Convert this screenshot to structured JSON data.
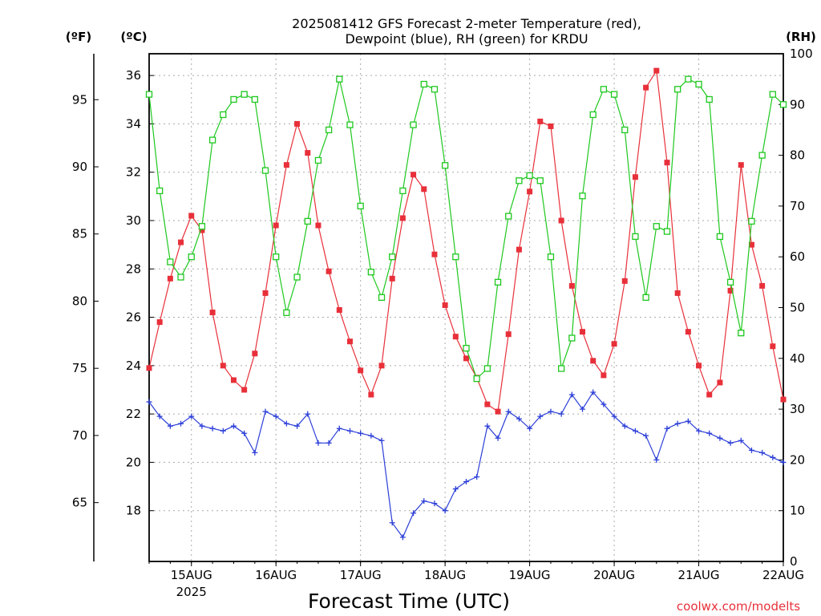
{
  "chart_data": {
    "type": "line",
    "title": "2025081412 GFS Forecast 2-meter Temperature (red),",
    "subtitle": "Dewpoint (blue), RH (green) for KRDU",
    "xlabel": "Forecast Time (UTC)",
    "credit": "coolwx.com/modelts",
    "axis_units": {
      "fahrenheit": "(ºF)",
      "celsius": "(ºC)",
      "rh": "(RH)"
    },
    "x_start": "2025-08-14T12:00Z",
    "x_end": "2025-08-22T00:00Z",
    "x_tick_labels": [
      "15AUG",
      "16AUG",
      "17AUG",
      "18AUG",
      "19AUG",
      "20AUG",
      "21AUG",
      "22AUG"
    ],
    "x_year_label": "2025",
    "y_celsius": {
      "range": [
        15.9,
        36.9
      ],
      "ticks": [
        18,
        20,
        22,
        24,
        26,
        28,
        30,
        32,
        34,
        36
      ]
    },
    "y_fahrenheit": {
      "range": [
        60.6,
        98.4
      ],
      "ticks": [
        65,
        70,
        75,
        80,
        85,
        90,
        95
      ]
    },
    "y_rh": {
      "range": [
        0,
        100
      ],
      "ticks": [
        0,
        10,
        20,
        30,
        40,
        50,
        60,
        70,
        80,
        90,
        100
      ]
    },
    "grid": true,
    "colors": {
      "temperature": "#e8303a",
      "dewpoint": "#2c3fd8",
      "rh": "#1ec81e"
    },
    "series": [
      {
        "name": "Temperature",
        "unit": "C",
        "x_hours": [
          0,
          3,
          6,
          9,
          12,
          15,
          18,
          21,
          24,
          27,
          30,
          33,
          36,
          39,
          42,
          45,
          48,
          51,
          54,
          57,
          60,
          63,
          66,
          69,
          72,
          75,
          78,
          81,
          84,
          87,
          90,
          93,
          96,
          99,
          102,
          105,
          108,
          111,
          114,
          117,
          120,
          123,
          126,
          129,
          132,
          135,
          138,
          141,
          144,
          147,
          150,
          153,
          156,
          159,
          162,
          165,
          168,
          171,
          174,
          177,
          180
        ],
        "values": [
          23.9,
          25.8,
          27.6,
          29.1,
          30.2,
          29.6,
          26.2,
          24.0,
          23.4,
          23.0,
          24.5,
          27.0,
          29.8,
          32.3,
          34.0,
          32.8,
          29.8,
          27.9,
          26.3,
          25.0,
          23.8,
          22.8,
          24.0,
          27.6,
          30.1,
          31.9,
          31.3,
          28.6,
          26.5,
          25.2,
          24.3,
          23.5,
          22.4,
          22.1,
          25.3,
          28.8,
          31.2,
          34.1,
          33.9,
          30.0,
          27.3,
          25.4,
          24.2,
          23.6,
          24.9,
          27.5,
          31.8,
          35.5,
          36.2,
          32.4,
          27.0,
          25.4,
          24.0,
          22.8,
          23.3,
          27.1,
          32.3,
          29.0,
          27.3,
          24.8,
          22.6
        ]
      },
      {
        "name": "Dewpoint",
        "unit": "C",
        "x_hours": [
          0,
          3,
          6,
          9,
          12,
          15,
          18,
          21,
          24,
          27,
          30,
          33,
          36,
          39,
          42,
          45,
          48,
          51,
          54,
          57,
          60,
          63,
          66,
          69,
          72,
          75,
          78,
          81,
          84,
          87,
          90,
          93,
          96,
          99,
          102,
          105,
          108,
          111,
          114,
          117,
          120,
          123,
          126,
          129,
          132,
          135,
          138,
          141,
          144,
          147,
          150,
          153,
          156,
          159,
          162,
          165,
          168,
          171,
          174,
          177,
          180
        ],
        "values": [
          22.5,
          21.9,
          21.5,
          21.6,
          21.9,
          21.5,
          21.4,
          21.3,
          21.5,
          21.2,
          20.4,
          22.1,
          21.9,
          21.6,
          21.5,
          22.0,
          20.8,
          20.8,
          21.4,
          21.3,
          21.2,
          21.1,
          20.9,
          17.5,
          16.9,
          17.9,
          18.4,
          18.3,
          18.0,
          18.9,
          19.2,
          19.4,
          21.5,
          21.0,
          22.1,
          21.8,
          21.4,
          21.9,
          22.1,
          22.0,
          22.8,
          22.2,
          22.9,
          22.4,
          21.9,
          21.5,
          21.3,
          21.1,
          20.1,
          21.4,
          21.6,
          21.7,
          21.3,
          21.2,
          21.0,
          20.8,
          20.9,
          20.5,
          20.4,
          20.2,
          20.0
        ]
      },
      {
        "name": "RH",
        "unit": "%",
        "x_hours": [
          0,
          3,
          6,
          9,
          12,
          15,
          18,
          21,
          24,
          27,
          30,
          33,
          36,
          39,
          42,
          45,
          48,
          51,
          54,
          57,
          60,
          63,
          66,
          69,
          72,
          75,
          78,
          81,
          84,
          87,
          90,
          93,
          96,
          99,
          102,
          105,
          108,
          111,
          114,
          117,
          120,
          123,
          126,
          129,
          132,
          135,
          138,
          141,
          144,
          147,
          150,
          153,
          156,
          159,
          162,
          165,
          168,
          171,
          174,
          177,
          180
        ],
        "values": [
          92,
          73,
          59,
          56,
          60,
          66,
          83,
          88,
          91,
          92,
          91,
          77,
          60,
          49,
          56,
          67,
          79,
          85,
          95,
          86,
          70,
          57,
          52,
          60,
          73,
          86,
          94,
          93,
          78,
          60,
          42,
          36,
          38,
          55,
          68,
          75,
          76,
          75,
          60,
          38,
          44,
          72,
          88,
          93,
          92,
          85,
          64,
          52,
          66,
          65,
          93,
          95,
          94,
          91,
          64,
          55,
          45,
          67,
          80,
          92,
          90
        ]
      }
    ]
  }
}
